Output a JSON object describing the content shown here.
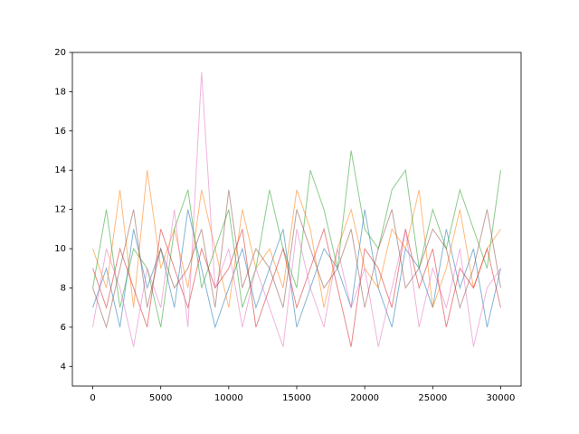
{
  "chart_data": {
    "type": "line",
    "x": [
      0,
      1000,
      2000,
      3000,
      4000,
      5000,
      6000,
      7000,
      8000,
      9000,
      10000,
      11000,
      12000,
      13000,
      14000,
      15000,
      16000,
      17000,
      18000,
      19000,
      20000,
      21000,
      22000,
      23000,
      24000,
      25000,
      26000,
      27000,
      28000,
      29000,
      30000
    ],
    "series": [
      {
        "color": "#1f77b4",
        "values": [
          7,
          9,
          6,
          11,
          8,
          10,
          7,
          12,
          9,
          6,
          8,
          10,
          7,
          9,
          11,
          6,
          8,
          10,
          9,
          7,
          12,
          8,
          6,
          10,
          9,
          7,
          11,
          8,
          10,
          6,
          9
        ]
      },
      {
        "color": "#ff7f0e",
        "values": [
          10,
          8,
          13,
          7,
          14,
          9,
          11,
          8,
          13,
          10,
          7,
          12,
          9,
          10,
          8,
          13,
          11,
          7,
          10,
          12,
          9,
          8,
          11,
          10,
          13,
          7,
          9,
          12,
          8,
          10,
          11
        ]
      },
      {
        "color": "#2ca02c",
        "values": [
          8,
          12,
          7,
          10,
          9,
          6,
          11,
          13,
          8,
          10,
          12,
          7,
          9,
          13,
          10,
          8,
          14,
          12,
          9,
          15,
          11,
          10,
          13,
          14,
          9,
          12,
          10,
          13,
          11,
          9,
          14
        ]
      },
      {
        "color": "#d62728",
        "values": [
          9,
          7,
          10,
          8,
          6,
          11,
          9,
          7,
          10,
          8,
          9,
          11,
          6,
          8,
          10,
          7,
          9,
          11,
          8,
          5,
          10,
          9,
          7,
          11,
          8,
          10,
          6,
          9,
          8,
          10,
          7
        ]
      },
      {
        "color": "#e377c2",
        "values": [
          6,
          10,
          8,
          5,
          9,
          7,
          12,
          6,
          19,
          8,
          10,
          6,
          9,
          7,
          5,
          11,
          8,
          6,
          10,
          7,
          9,
          5,
          8,
          11,
          6,
          9,
          7,
          10,
          5,
          8,
          9
        ]
      },
      {
        "color": "#8c564b",
        "values": [
          8,
          6,
          9,
          12,
          7,
          10,
          8,
          9,
          11,
          7,
          13,
          8,
          10,
          9,
          7,
          12,
          10,
          8,
          9,
          11,
          7,
          10,
          12,
          8,
          9,
          11,
          10,
          7,
          9,
          12,
          8
        ]
      }
    ],
    "line_alpha": 0.55,
    "xlim": [
      -1500,
      31500
    ],
    "xticks": [
      0,
      5000,
      10000,
      15000,
      20000,
      25000,
      30000
    ],
    "ylim": [
      3,
      20
    ],
    "yticks": [
      4,
      6,
      8,
      10,
      12,
      14,
      16,
      18,
      20
    ],
    "grid": false
  }
}
